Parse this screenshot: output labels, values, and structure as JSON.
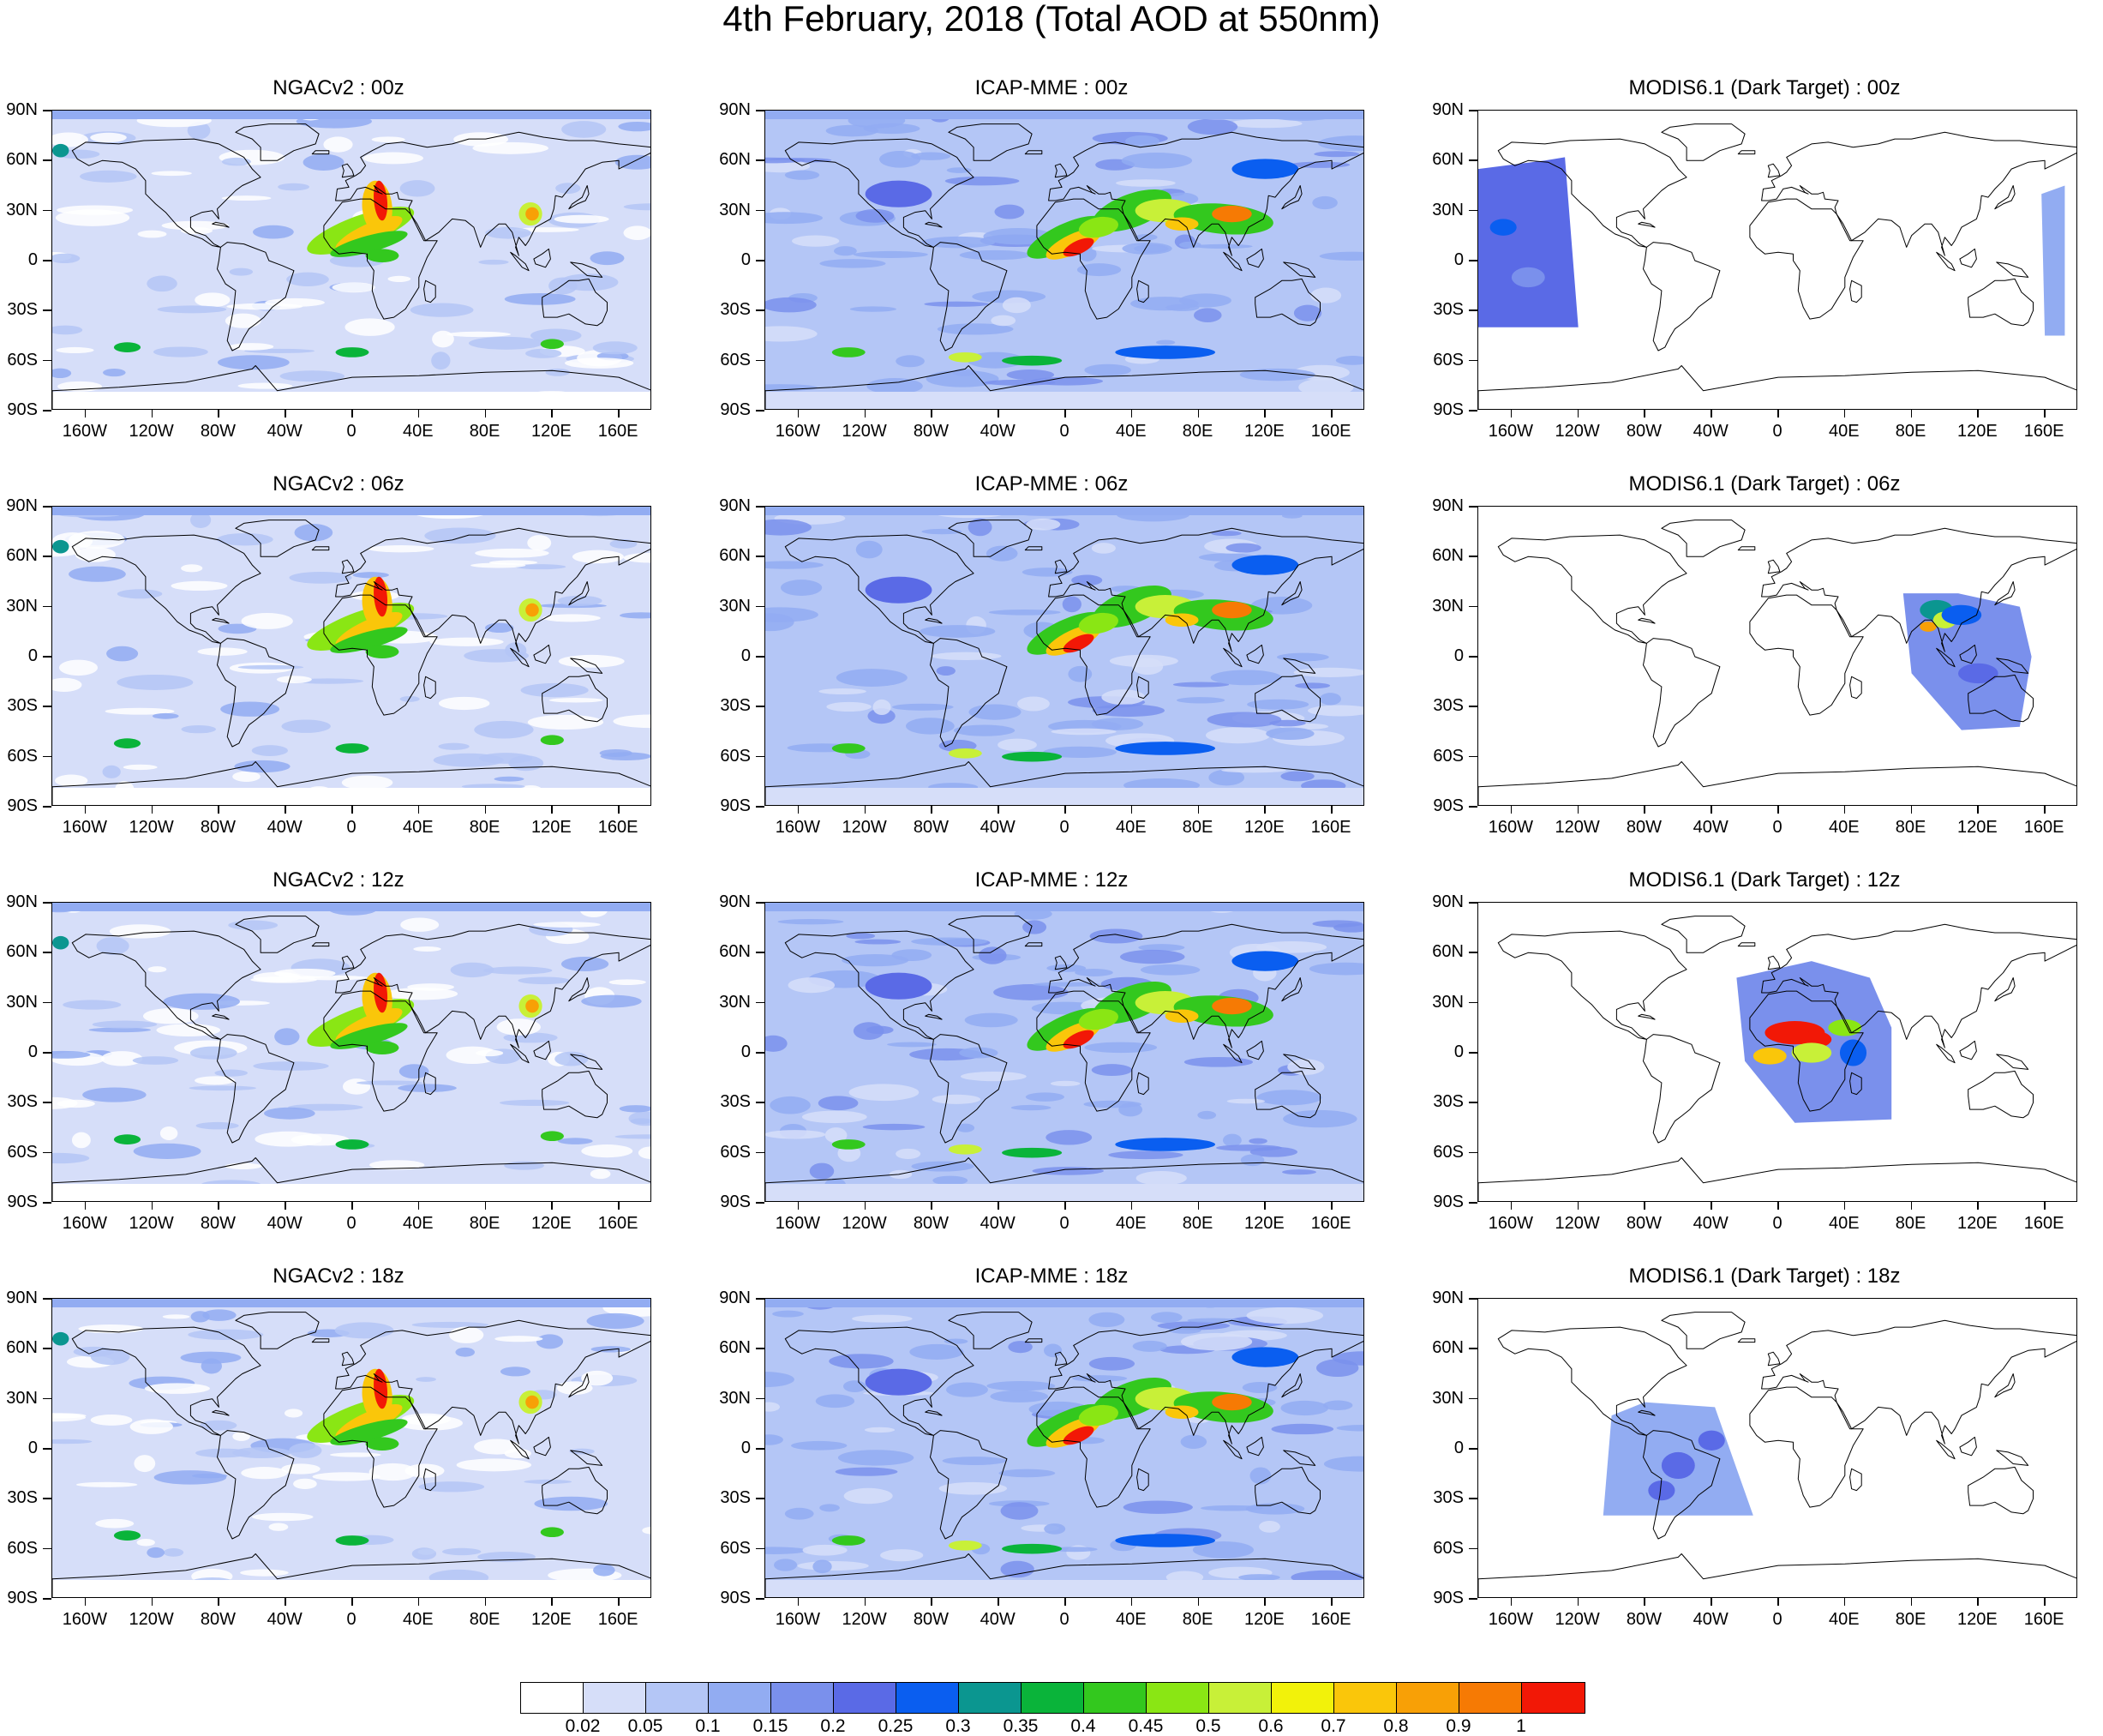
{
  "title": "4th February, 2018 (Total AOD at 550nm)",
  "lat_labels": [
    "90N",
    "60N",
    "30N",
    "0",
    "30S",
    "60S",
    "90S"
  ],
  "lon_labels": [
    "160W",
    "120W",
    "80W",
    "40W",
    "0",
    "40E",
    "80E",
    "120E",
    "160E"
  ],
  "panels": [
    {
      "title": "NGACv2 : 00z",
      "model": "ngac",
      "hour": "00z"
    },
    {
      "title": "ICAP-MME : 00z",
      "model": "icap",
      "hour": "00z"
    },
    {
      "title": "MODIS6.1 (Dark Target) : 00z",
      "model": "modis",
      "hour": "00z"
    },
    {
      "title": "NGACv2 : 06z",
      "model": "ngac",
      "hour": "06z"
    },
    {
      "title": "ICAP-MME : 06z",
      "model": "icap",
      "hour": "06z"
    },
    {
      "title": "MODIS6.1 (Dark Target) : 06z",
      "model": "modis",
      "hour": "06z"
    },
    {
      "title": "NGACv2 : 12z",
      "model": "ngac",
      "hour": "12z"
    },
    {
      "title": "ICAP-MME : 12z",
      "model": "icap",
      "hour": "12z"
    },
    {
      "title": "MODIS6.1 (Dark Target) : 12z",
      "model": "modis",
      "hour": "12z"
    },
    {
      "title": "NGACv2 : 18z",
      "model": "ngac",
      "hour": "18z"
    },
    {
      "title": "ICAP-MME : 18z",
      "model": "icap",
      "hour": "18z"
    },
    {
      "title": "MODIS6.1 (Dark Target) : 18z",
      "model": "modis",
      "hour": "18z"
    }
  ],
  "colorbar": {
    "labels": [
      "0.02",
      "0.05",
      "0.1",
      "0.15",
      "0.2",
      "0.25",
      "0.3",
      "0.35",
      "0.4",
      "0.45",
      "0.5",
      "0.6",
      "0.7",
      "0.8",
      "0.9",
      "1"
    ],
    "colors": [
      "#ffffff",
      "#d6def9",
      "#b4c6f6",
      "#92acf2",
      "#7a90ec",
      "#5a6ae6",
      "#0a5ef0",
      "#0b9690",
      "#0ab43a",
      "#33c81e",
      "#8ae614",
      "#c8f038",
      "#f2f20a",
      "#fac60a",
      "#f8a006",
      "#f67a04",
      "#f21806"
    ]
  }
}
